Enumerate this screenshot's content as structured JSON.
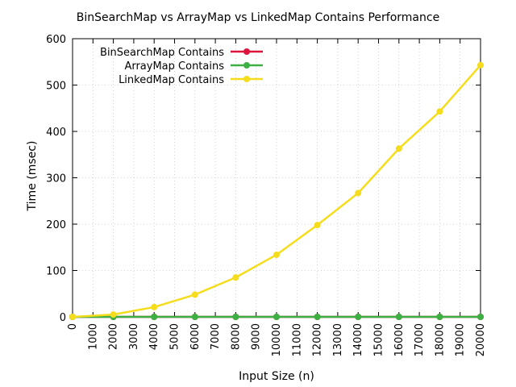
{
  "chart_data": {
    "type": "line",
    "title": "BinSearchMap vs ArrayMap vs LinkedMap Contains Performance",
    "xlabel": "Input Size (n)",
    "ylabel": "Time (msec)",
    "xlim": [
      0,
      20000
    ],
    "ylim": [
      0,
      600
    ],
    "xticks": [
      0,
      1000,
      2000,
      3000,
      4000,
      5000,
      6000,
      7000,
      8000,
      9000,
      10000,
      11000,
      12000,
      13000,
      14000,
      15000,
      16000,
      17000,
      18000,
      19000,
      20000
    ],
    "yticks": [
      0,
      100,
      200,
      300,
      400,
      500,
      600
    ],
    "grid": true,
    "legend_position": "top-left",
    "x": [
      0,
      2000,
      4000,
      6000,
      8000,
      10000,
      12000,
      14000,
      16000,
      18000,
      20000
    ],
    "series": [
      {
        "name": "BinSearchMap Contains",
        "color": "#dc143c",
        "values": [
          0,
          0,
          0,
          0,
          0,
          0,
          0,
          0,
          0,
          0,
          0
        ]
      },
      {
        "name": "ArrayMap Contains",
        "color": "#3cb043",
        "values": [
          0,
          0,
          0,
          0,
          0,
          0,
          0,
          0,
          0,
          0,
          0
        ]
      },
      {
        "name": "LinkedMap Contains",
        "color": "#f5dd1e",
        "values": [
          0,
          5,
          21,
          48,
          85,
          134,
          198,
          267,
          363,
          443,
          543
        ]
      }
    ]
  }
}
